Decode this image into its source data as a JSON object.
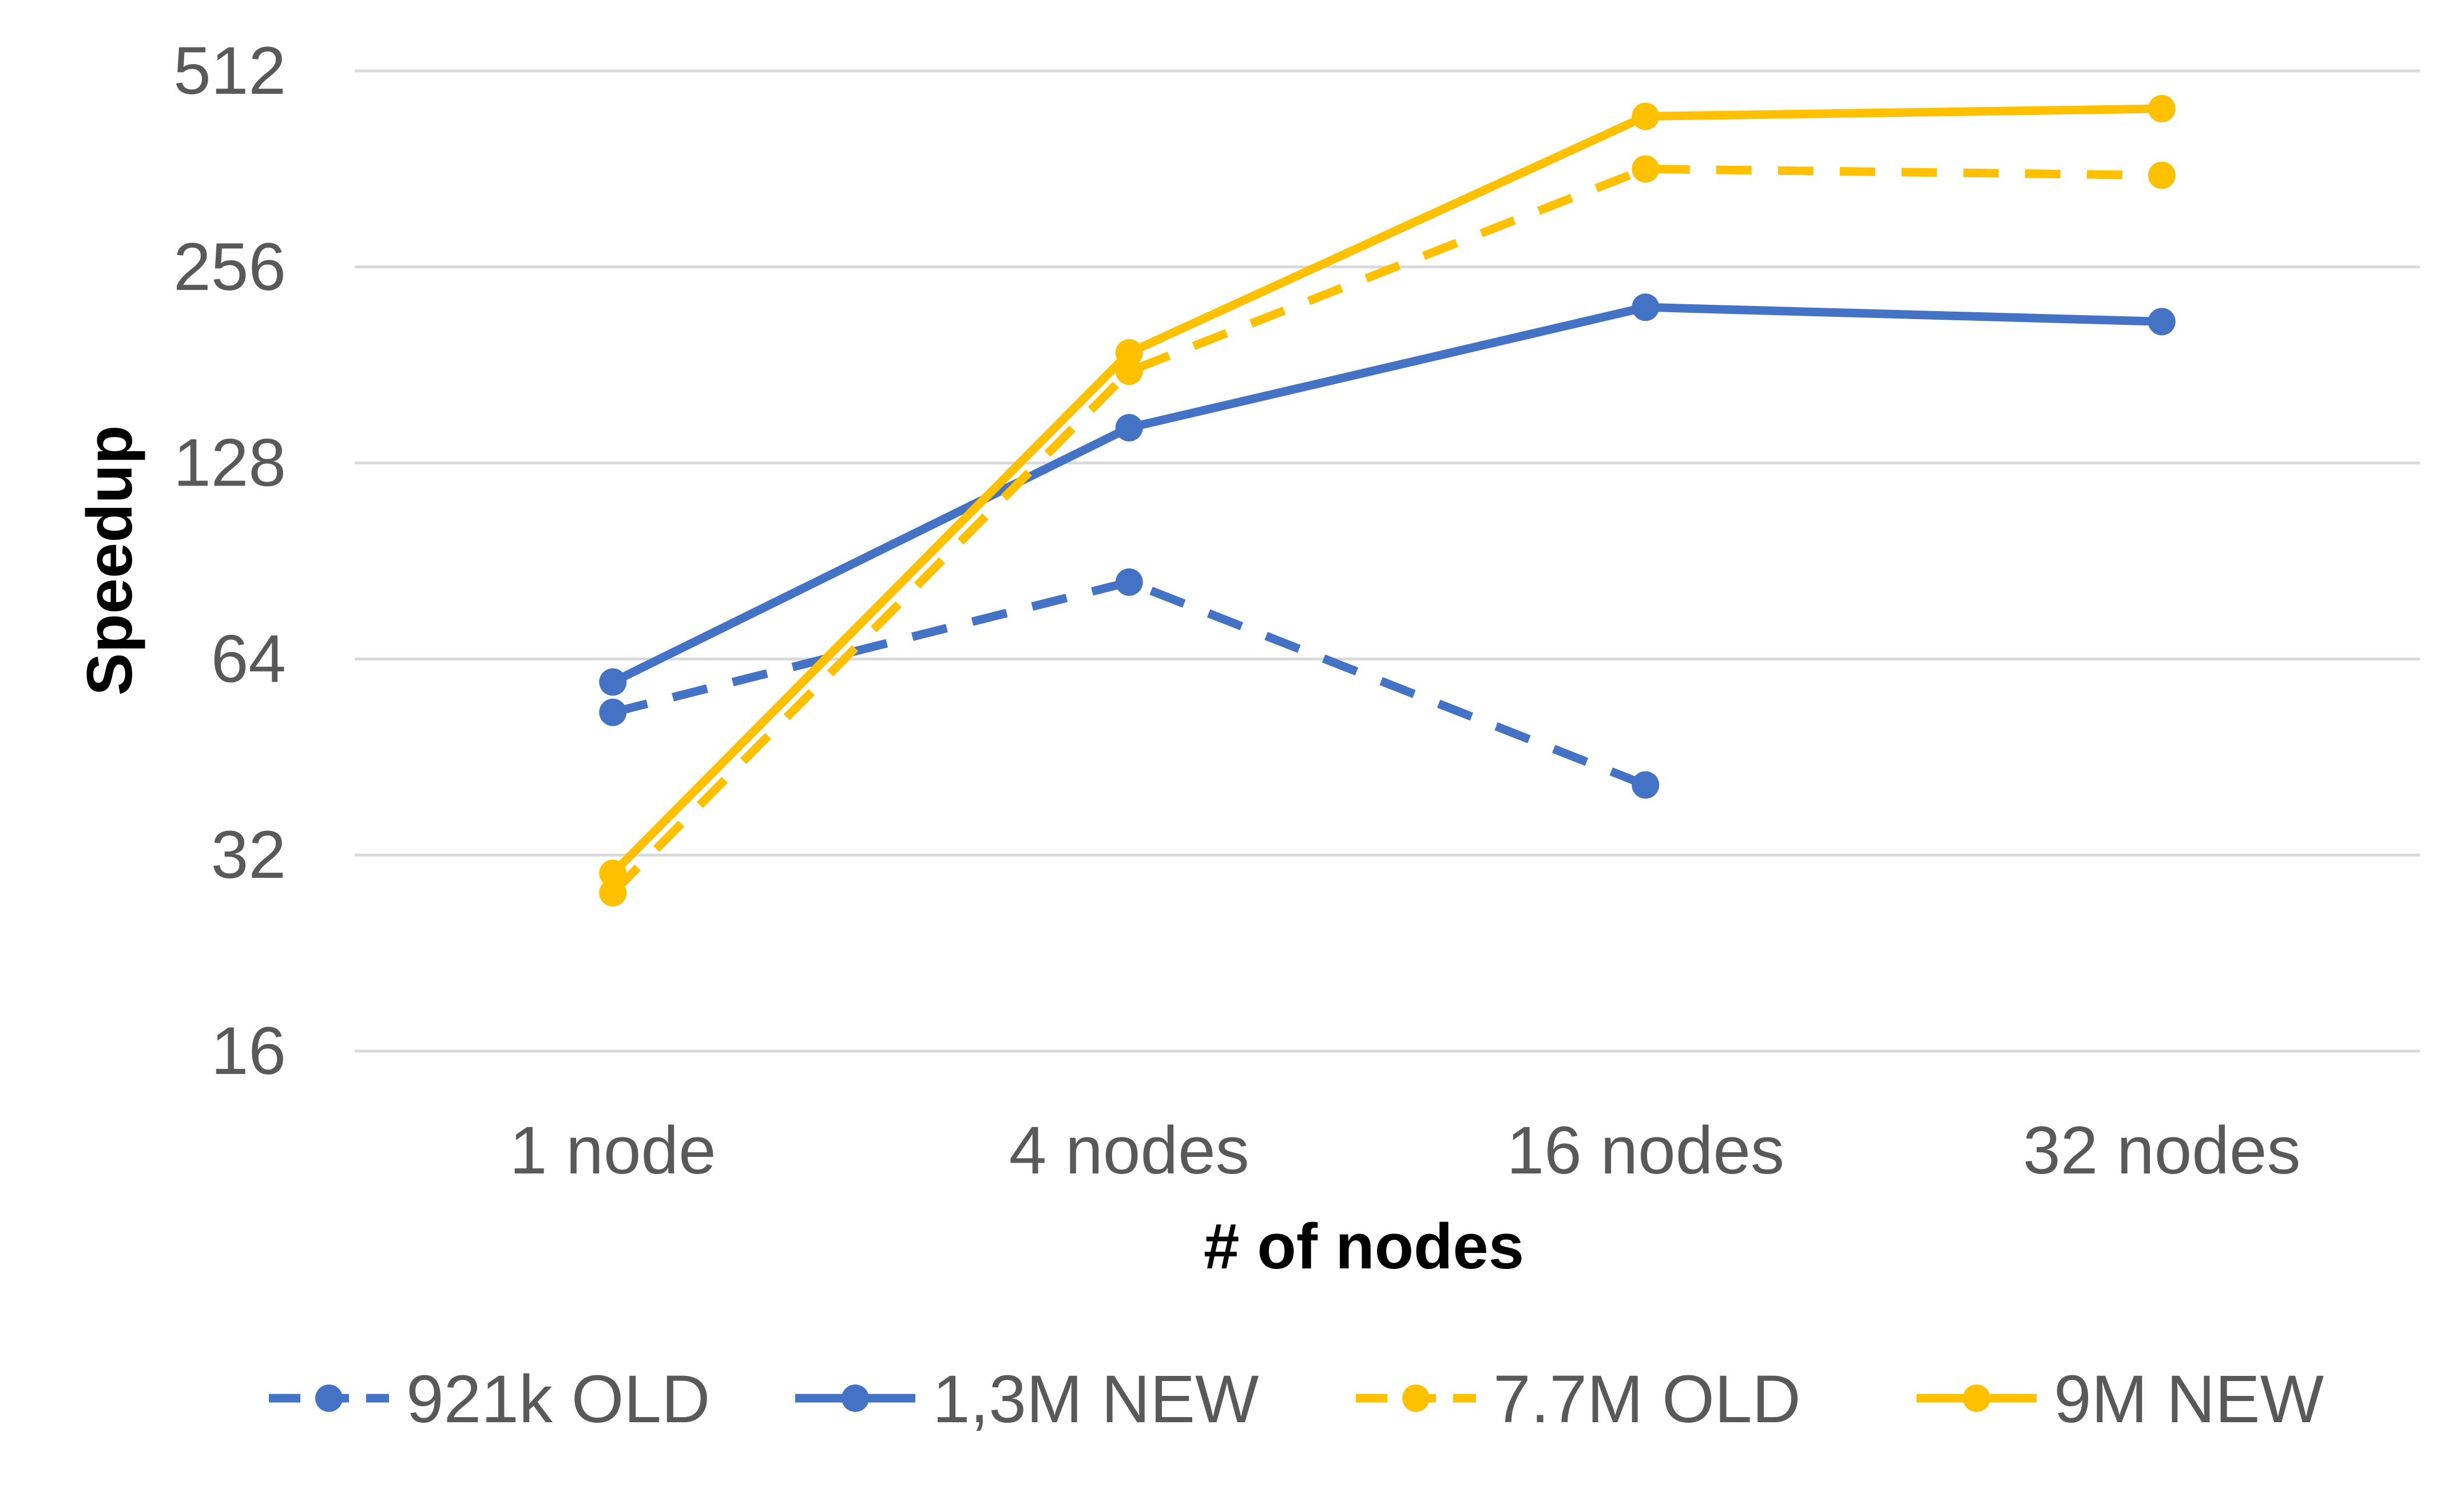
{
  "chart_data": {
    "type": "line",
    "title": "",
    "xlabel": "# of nodes",
    "ylabel": "Speedup",
    "y_scale": "log2",
    "ylim": [
      16,
      512
    ],
    "y_ticks": [
      "16",
      "32",
      "64",
      "128",
      "256",
      "512"
    ],
    "y_tick_values": [
      16,
      32,
      64,
      128,
      256,
      512
    ],
    "grid": true,
    "legend_position": "bottom",
    "categories": [
      "1 node",
      "4 nodes",
      "16 nodes",
      "32 nodes"
    ],
    "series": [
      {
        "name": "921k OLD",
        "values": [
          53,
          84,
          41,
          null
        ],
        "color": "#4472C4",
        "dashed": true
      },
      {
        "name": "1,3M NEW",
        "values": [
          59,
          145,
          222,
          211
        ],
        "color": "#4472C4",
        "dashed": false
      },
      {
        "name": "7.7M OLD",
        "values": [
          28,
          177,
          362,
          354
        ],
        "color": "#FFC000",
        "dashed": true
      },
      {
        "name": "9M NEW",
        "values": [
          30,
          189,
          436,
          448
        ],
        "color": "#FFC000",
        "dashed": false
      }
    ]
  }
}
